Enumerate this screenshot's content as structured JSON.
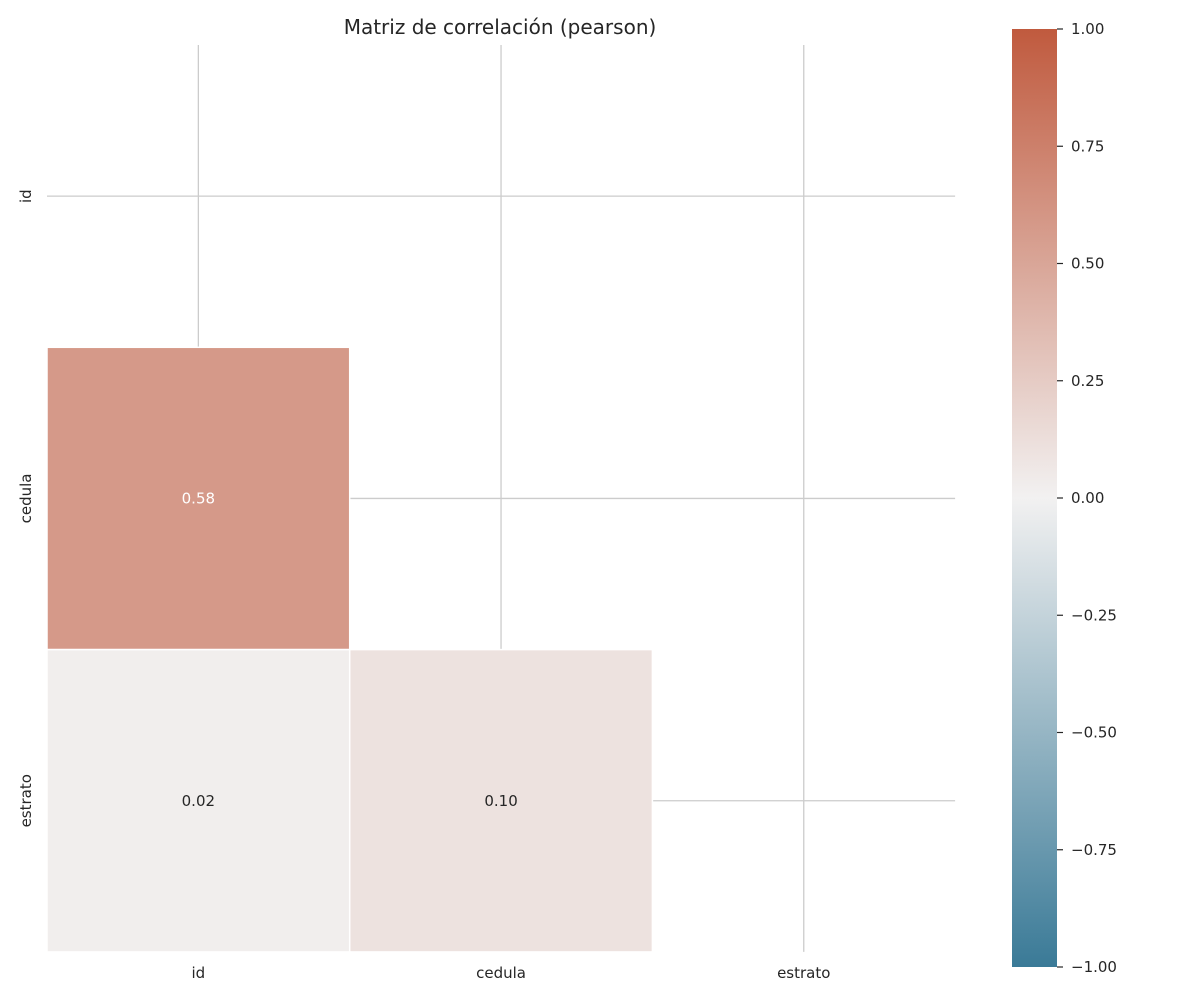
{
  "chart_data": {
    "type": "heatmap",
    "title": "Matriz de correlación (pearson)",
    "row_labels": [
      "id",
      "cedula",
      "estrato"
    ],
    "col_labels": [
      "id",
      "cedula",
      "estrato"
    ],
    "mask": "upper-triangle-including-diagonal",
    "cells": [
      {
        "row": 1,
        "col": 0,
        "value": 0.58,
        "label": "0.58"
      },
      {
        "row": 2,
        "col": 0,
        "value": 0.02,
        "label": "0.02"
      },
      {
        "row": 2,
        "col": 1,
        "value": 0.1,
        "label": "0.10"
      }
    ],
    "colorbar": {
      "range": [
        -1.0,
        1.0
      ],
      "ticks": [
        {
          "value": 1.0,
          "label": "1.00"
        },
        {
          "value": 0.75,
          "label": "0.75"
        },
        {
          "value": 0.5,
          "label": "0.50"
        },
        {
          "value": 0.25,
          "label": "0.25"
        },
        {
          "value": 0.0,
          "label": "0.00"
        },
        {
          "value": -0.25,
          "label": "−0.25"
        },
        {
          "value": -0.5,
          "label": "−0.50"
        },
        {
          "value": -0.75,
          "label": "−0.75"
        },
        {
          "value": -1.0,
          "label": "−1.00"
        }
      ],
      "color_low": "#3a7a97",
      "color_mid": "#f2f1f1",
      "color_high": "#c05a3e"
    },
    "grid": true,
    "colors": {
      "grid": "#cccccc",
      "text_dark": "#262626",
      "text_light": "#ffffff"
    }
  }
}
